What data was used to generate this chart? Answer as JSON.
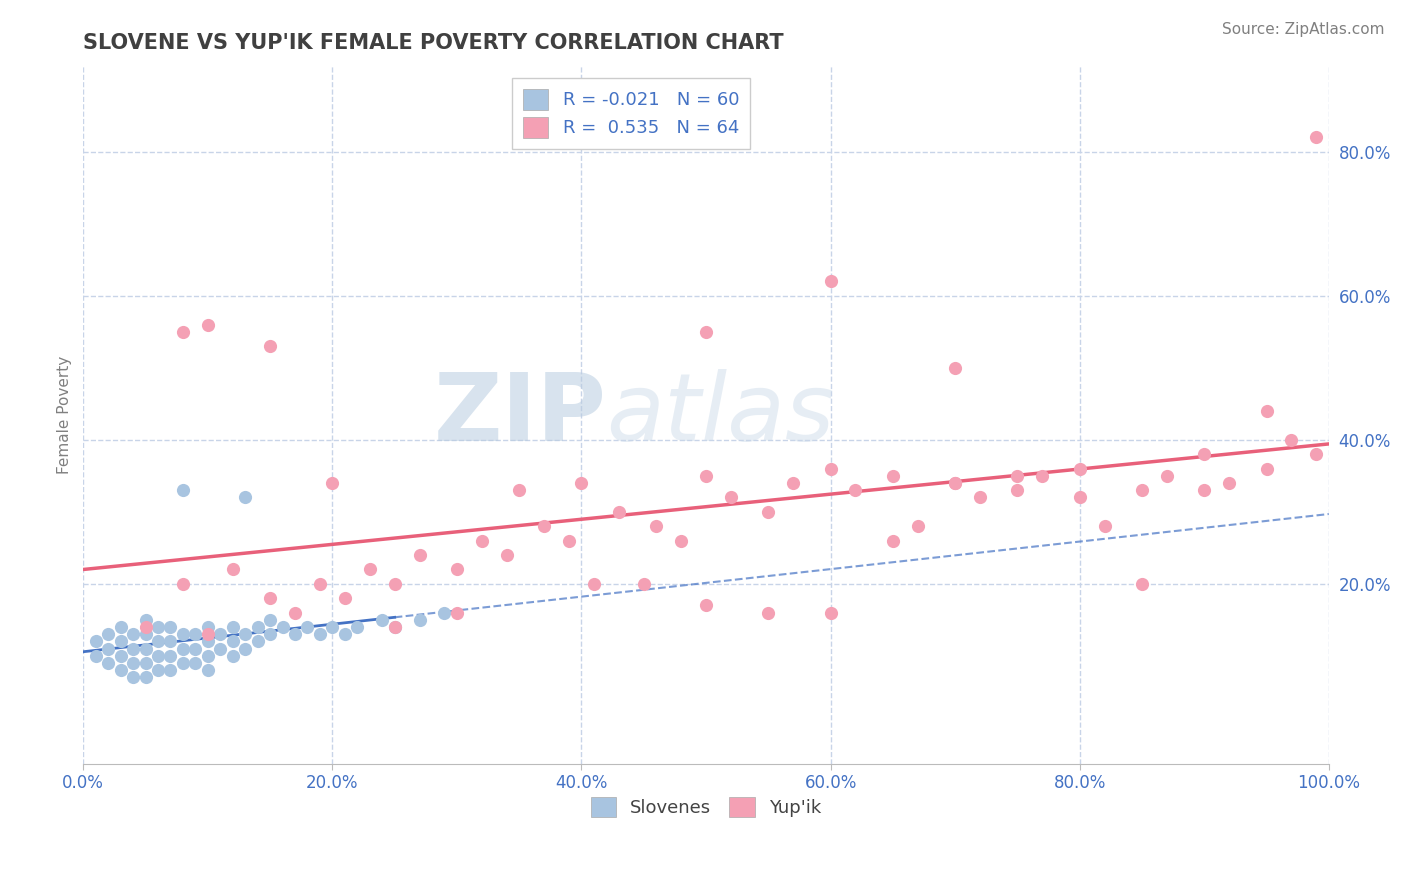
{
  "title": "SLOVENE VS YUP'IK FEMALE POVERTY CORRELATION CHART",
  "source_text": "Source: ZipAtlas.com",
  "ylabel": "Female Poverty",
  "xlim": [
    0.0,
    1.0
  ],
  "ylim": [
    -0.05,
    0.92
  ],
  "x_tick_labels": [
    "0.0%",
    "20.0%",
    "40.0%",
    "60.0%",
    "80.0%",
    "100.0%"
  ],
  "x_tick_vals": [
    0.0,
    0.2,
    0.4,
    0.6,
    0.8,
    1.0
  ],
  "y_tick_labels": [
    "20.0%",
    "40.0%",
    "60.0%",
    "80.0%"
  ],
  "y_tick_vals": [
    0.2,
    0.4,
    0.6,
    0.8
  ],
  "legend_labels": [
    "Slovenes",
    "Yup'ik"
  ],
  "slovene_color": "#a8c4e0",
  "yupik_color": "#f4a0b4",
  "slovene_line_color": "#4472c4",
  "yupik_line_color": "#e8607a",
  "legend_R_slovene": "R = -0.021   N = 60",
  "legend_R_yupik": "R =  0.535   N = 64",
  "watermark_zip": "ZIP",
  "watermark_atlas": "atlas",
  "title_color": "#404040",
  "axis_label_color": "#808080",
  "tick_color": "#4472c4",
  "grid_color": "#c8d4e8",
  "slovene_scatter_x": [
    0.01,
    0.01,
    0.02,
    0.02,
    0.02,
    0.03,
    0.03,
    0.03,
    0.03,
    0.04,
    0.04,
    0.04,
    0.04,
    0.05,
    0.05,
    0.05,
    0.05,
    0.05,
    0.06,
    0.06,
    0.06,
    0.06,
    0.07,
    0.07,
    0.07,
    0.07,
    0.08,
    0.08,
    0.08,
    0.09,
    0.09,
    0.09,
    0.1,
    0.1,
    0.1,
    0.1,
    0.11,
    0.11,
    0.12,
    0.12,
    0.12,
    0.13,
    0.13,
    0.14,
    0.14,
    0.15,
    0.15,
    0.16,
    0.17,
    0.18,
    0.19,
    0.2,
    0.21,
    0.22,
    0.24,
    0.25,
    0.27,
    0.29,
    0.13,
    0.08
  ],
  "slovene_scatter_y": [
    0.12,
    0.1,
    0.13,
    0.11,
    0.09,
    0.14,
    0.12,
    0.1,
    0.08,
    0.13,
    0.11,
    0.09,
    0.07,
    0.15,
    0.13,
    0.11,
    0.09,
    0.07,
    0.14,
    0.12,
    0.1,
    0.08,
    0.14,
    0.12,
    0.1,
    0.08,
    0.13,
    0.11,
    0.09,
    0.13,
    0.11,
    0.09,
    0.14,
    0.12,
    0.1,
    0.08,
    0.13,
    0.11,
    0.14,
    0.12,
    0.1,
    0.13,
    0.11,
    0.14,
    0.12,
    0.15,
    0.13,
    0.14,
    0.13,
    0.14,
    0.13,
    0.14,
    0.13,
    0.14,
    0.15,
    0.14,
    0.15,
    0.16,
    0.32,
    0.33
  ],
  "yupik_scatter_x": [
    0.05,
    0.08,
    0.1,
    0.12,
    0.15,
    0.17,
    0.19,
    0.21,
    0.23,
    0.25,
    0.27,
    0.3,
    0.32,
    0.34,
    0.37,
    0.39,
    0.41,
    0.43,
    0.46,
    0.48,
    0.5,
    0.52,
    0.55,
    0.57,
    0.6,
    0.62,
    0.65,
    0.67,
    0.7,
    0.72,
    0.75,
    0.77,
    0.8,
    0.82,
    0.85,
    0.87,
    0.9,
    0.92,
    0.95,
    0.97,
    0.99,
    0.5,
    0.55,
    0.6,
    0.65,
    0.7,
    0.75,
    0.8,
    0.85,
    0.9,
    0.95,
    0.4,
    0.45,
    0.35,
    0.3,
    0.25,
    0.2,
    0.15,
    0.1,
    0.08,
    0.99,
    0.7,
    0.6,
    0.5
  ],
  "yupik_scatter_y": [
    0.14,
    0.2,
    0.13,
    0.22,
    0.18,
    0.16,
    0.2,
    0.18,
    0.22,
    0.2,
    0.24,
    0.22,
    0.26,
    0.24,
    0.28,
    0.26,
    0.2,
    0.3,
    0.28,
    0.26,
    0.35,
    0.32,
    0.3,
    0.34,
    0.36,
    0.33,
    0.35,
    0.28,
    0.34,
    0.32,
    0.33,
    0.35,
    0.36,
    0.28,
    0.33,
    0.35,
    0.33,
    0.34,
    0.36,
    0.4,
    0.38,
    0.17,
    0.16,
    0.16,
    0.26,
    0.34,
    0.35,
    0.32,
    0.2,
    0.38,
    0.44,
    0.34,
    0.2,
    0.33,
    0.16,
    0.14,
    0.34,
    0.53,
    0.56,
    0.55,
    0.82,
    0.5,
    0.62,
    0.55
  ]
}
